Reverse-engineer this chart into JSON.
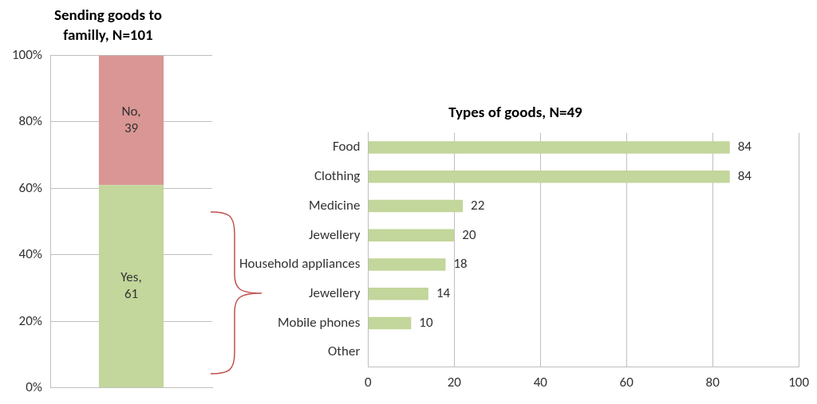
{
  "chart_data": [
    {
      "type": "bar",
      "title": "Sending goods to familly, N=101",
      "categories": [
        null
      ],
      "stacked": true,
      "series": [
        {
          "color": "#c3d69b",
          "values": [
            61
          ],
          "value_labels": [
            "Yes, 61"
          ]
        },
        {
          "color": "#d99694",
          "values": [
            39
          ],
          "value_labels": [
            "No, 39"
          ]
        }
      ],
      "ylim": [
        0,
        100
      ],
      "yticks": [
        {
          "value": 0,
          "label": "0%"
        },
        {
          "value": 20,
          "label": "20%"
        },
        {
          "value": 40,
          "label": "40%"
        },
        {
          "value": 60,
          "label": "60%"
        },
        {
          "value": 80,
          "label": "80%"
        },
        {
          "value": 100,
          "label": "100%"
        }
      ],
      "tick_labels": "y",
      "grid": "y",
      "legend": false
    },
    {
      "type": "bar",
      "title": "Types of goods, N=49",
      "orientation": "horizontal",
      "categories": [
        "Food",
        "Clothing",
        "Medicine",
        "Jewellery",
        "Household appliances",
        "Jewellery",
        "Mobile phones",
        "Other"
      ],
      "values": [
        84,
        84,
        22,
        20,
        18,
        14,
        10,
        0
      ],
      "value_labels": [
        "84",
        "84",
        "22",
        "20",
        "18",
        "14",
        "10",
        null
      ],
      "color": "#c3d69b",
      "xlim": [
        0,
        100
      ],
      "xticks": [
        0,
        20,
        40,
        60,
        80,
        100
      ],
      "grid": "x",
      "legend": false
    }
  ]
}
